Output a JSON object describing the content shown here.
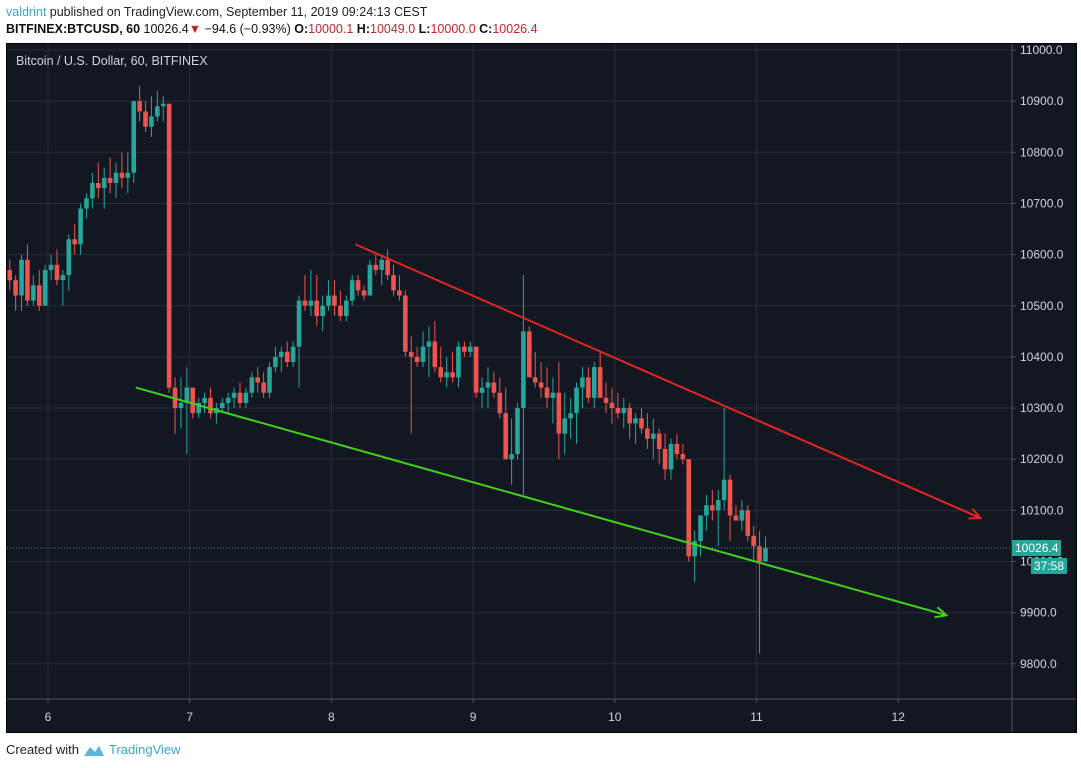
{
  "header": {
    "user": "valdrint",
    "published_text": " published on TradingView.com, September 11, 2019 09:24:13 CEST",
    "symbol": "BITFINEX:BTCUSD, 60",
    "last": "10026.4",
    "down_arrow": "▼",
    "change": "−94.6 (−0.93%)",
    "o_label": "O:",
    "o": "10000.1",
    "h_label": "H:",
    "h": "10049.0",
    "l_label": "L:",
    "l": "10000.0",
    "c_label": "C:",
    "c": "10026.4"
  },
  "chart_title": "Bitcoin / U.S. Dollar, 60, BITFINEX",
  "price_label": "10026.4",
  "countdown_label": "37:58",
  "footer": {
    "created_with": "Created with",
    "brand": "TradingView"
  },
  "colors": {
    "bg": "#131722",
    "grid": "#2a2e39",
    "up": "#26a69a",
    "down": "#ef5350",
    "text": "#d1d4dc",
    "resistance": "#e3261f",
    "support": "#3fd21a"
  },
  "chart_data": {
    "type": "candlestick",
    "title": "Bitcoin / U.S. Dollar, 60, BITFINEX",
    "xlabel": "",
    "ylabel": "",
    "x_ticks": [
      "6",
      "7",
      "8",
      "9",
      "10",
      "11",
      "12"
    ],
    "y_ticks": [
      "11000.0",
      "10900.0",
      "10800.0",
      "10700.0",
      "10600.0",
      "10500.0",
      "10400.0",
      "10300.0",
      "10200.0",
      "10100.0",
      "10000.0",
      "9900.0",
      "9800.0"
    ],
    "ylim": [
      9720,
      11010
    ],
    "grid": true,
    "last_price": 10026.4,
    "trendlines": [
      {
        "name": "resistance",
        "color": "#e3261f",
        "from": {
          "day": 8.17,
          "price": 10620
        },
        "to": {
          "day": 12.58,
          "price": 10085
        },
        "arrow": true
      },
      {
        "name": "support",
        "color": "#3fd21a",
        "from": {
          "day": 6.62,
          "price": 10340
        },
        "to": {
          "day": 12.34,
          "price": 9895
        },
        "arrow": true
      }
    ],
    "candles_start_day": 5.73,
    "candle_hours": 1,
    "ohlc": [
      [
        10570,
        10590,
        10530,
        10550
      ],
      [
        10550,
        10560,
        10490,
        10520
      ],
      [
        10520,
        10600,
        10490,
        10590
      ],
      [
        10590,
        10620,
        10500,
        10510
      ],
      [
        10510,
        10560,
        10500,
        10540
      ],
      [
        10540,
        10570,
        10490,
        10500
      ],
      [
        10500,
        10580,
        10500,
        10570
      ],
      [
        10570,
        10600,
        10550,
        10580
      ],
      [
        10580,
        10610,
        10540,
        10550
      ],
      [
        10550,
        10570,
        10500,
        10560
      ],
      [
        10560,
        10640,
        10530,
        10630
      ],
      [
        10630,
        10660,
        10600,
        10620
      ],
      [
        10620,
        10700,
        10600,
        10690
      ],
      [
        10690,
        10720,
        10670,
        10710
      ],
      [
        10710,
        10760,
        10690,
        10740
      ],
      [
        10740,
        10780,
        10710,
        10730
      ],
      [
        10730,
        10770,
        10690,
        10750
      ],
      [
        10750,
        10790,
        10720,
        10740
      ],
      [
        10740,
        10780,
        10710,
        10760
      ],
      [
        10760,
        10800,
        10730,
        10750
      ],
      [
        10750,
        10800,
        10720,
        10760
      ],
      [
        10760,
        10900,
        10740,
        10900
      ],
      [
        10900,
        10930,
        10860,
        10880
      ],
      [
        10880,
        10900,
        10840,
        10850
      ],
      [
        10850,
        10910,
        10830,
        10870
      ],
      [
        10870,
        10920,
        10860,
        10890
      ],
      [
        10890,
        10910,
        10860,
        10895
      ],
      [
        10895,
        10895,
        10330,
        10340
      ],
      [
        10340,
        10360,
        10250,
        10300
      ],
      [
        10300,
        10360,
        10260,
        10310
      ],
      [
        10310,
        10380,
        10210,
        10340
      ],
      [
        10340,
        10340,
        10280,
        10290
      ],
      [
        10290,
        10320,
        10280,
        10310
      ],
      [
        10310,
        10330,
        10290,
        10320
      ],
      [
        10320,
        10340,
        10280,
        10290
      ],
      [
        10290,
        10310,
        10270,
        10300
      ],
      [
        10300,
        10320,
        10290,
        10310
      ],
      [
        10310,
        10330,
        10290,
        10320
      ],
      [
        10320,
        10340,
        10300,
        10330
      ],
      [
        10330,
        10350,
        10300,
        10310
      ],
      [
        10310,
        10340,
        10300,
        10330
      ],
      [
        10330,
        10370,
        10320,
        10360
      ],
      [
        10360,
        10380,
        10330,
        10350
      ],
      [
        10350,
        10370,
        10320,
        10330
      ],
      [
        10330,
        10390,
        10320,
        10380
      ],
      [
        10380,
        10420,
        10370,
        10400
      ],
      [
        10400,
        10420,
        10370,
        10410
      ],
      [
        10410,
        10430,
        10380,
        10390
      ],
      [
        10390,
        10430,
        10380,
        10420
      ],
      [
        10420,
        10520,
        10340,
        10510
      ],
      [
        10510,
        10560,
        10490,
        10500
      ],
      [
        10500,
        10570,
        10480,
        10510
      ],
      [
        10510,
        10560,
        10460,
        10480
      ],
      [
        10480,
        10520,
        10450,
        10500
      ],
      [
        10500,
        10550,
        10490,
        10520
      ],
      [
        10520,
        10550,
        10480,
        10500
      ],
      [
        10500,
        10530,
        10470,
        10480
      ],
      [
        10480,
        10520,
        10470,
        10510
      ],
      [
        10510,
        10560,
        10500,
        10550
      ],
      [
        10550,
        10560,
        10520,
        10530
      ],
      [
        10530,
        10540,
        10510,
        10520
      ],
      [
        10520,
        10590,
        10520,
        10580
      ],
      [
        10580,
        10600,
        10560,
        10570
      ],
      [
        10570,
        10600,
        10540,
        10590
      ],
      [
        10590,
        10610,
        10550,
        10560
      ],
      [
        10560,
        10580,
        10520,
        10530
      ],
      [
        10530,
        10560,
        10510,
        10520
      ],
      [
        10520,
        10530,
        10400,
        10410
      ],
      [
        10410,
        10440,
        10250,
        10400
      ],
      [
        10400,
        10420,
        10380,
        10390
      ],
      [
        10390,
        10450,
        10380,
        10420
      ],
      [
        10420,
        10460,
        10360,
        10430
      ],
      [
        10430,
        10470,
        10370,
        10380
      ],
      [
        10380,
        10420,
        10350,
        10360
      ],
      [
        10360,
        10400,
        10340,
        10370
      ],
      [
        10370,
        10410,
        10350,
        10360
      ],
      [
        10360,
        10430,
        10340,
        10420
      ],
      [
        10420,
        10430,
        10400,
        10410
      ],
      [
        10410,
        10430,
        10400,
        10420
      ],
      [
        10420,
        10420,
        10320,
        10330
      ],
      [
        10330,
        10360,
        10300,
        10340
      ],
      [
        10340,
        10380,
        10300,
        10350
      ],
      [
        10350,
        10370,
        10320,
        10330
      ],
      [
        10330,
        10360,
        10280,
        10290
      ],
      [
        10290,
        10340,
        10200,
        10200
      ],
      [
        10200,
        10280,
        10150,
        10210
      ],
      [
        10210,
        10310,
        10200,
        10300
      ],
      [
        10300,
        10560,
        10130,
        10450
      ],
      [
        10450,
        10460,
        10380,
        10360
      ],
      [
        10360,
        10410,
        10340,
        10350
      ],
      [
        10350,
        10390,
        10320,
        10340
      ],
      [
        10340,
        10380,
        10300,
        10320
      ],
      [
        10320,
        10360,
        10270,
        10330
      ],
      [
        10330,
        10390,
        10200,
        10250
      ],
      [
        10250,
        10330,
        10210,
        10280
      ],
      [
        10280,
        10320,
        10240,
        10290
      ],
      [
        10290,
        10350,
        10230,
        10340
      ],
      [
        10340,
        10380,
        10300,
        10360
      ],
      [
        10360,
        10380,
        10310,
        10320
      ],
      [
        10320,
        10390,
        10300,
        10380
      ],
      [
        10380,
        10410,
        10340,
        10320
      ],
      [
        10320,
        10350,
        10290,
        10310
      ],
      [
        10310,
        10340,
        10270,
        10300
      ],
      [
        10300,
        10330,
        10280,
        10290
      ],
      [
        10290,
        10320,
        10260,
        10300
      ],
      [
        10300,
        10310,
        10240,
        10270
      ],
      [
        10270,
        10290,
        10230,
        10280
      ],
      [
        10280,
        10300,
        10250,
        10260
      ],
      [
        10260,
        10290,
        10220,
        10240
      ],
      [
        10240,
        10280,
        10200,
        10250
      ],
      [
        10250,
        10260,
        10190,
        10220
      ],
      [
        10220,
        10250,
        10160,
        10180
      ],
      [
        10180,
        10240,
        10160,
        10230
      ],
      [
        10230,
        10250,
        10200,
        10210
      ],
      [
        10210,
        10230,
        10190,
        10200
      ],
      [
        10200,
        10200,
        10000,
        10010
      ],
      [
        10010,
        10060,
        9960,
        10040
      ],
      [
        10040,
        10080,
        10010,
        10090
      ],
      [
        10090,
        10130,
        10060,
        10110
      ],
      [
        10110,
        10140,
        10080,
        10100
      ],
      [
        10100,
        10140,
        10030,
        10120
      ],
      [
        10120,
        10300,
        10100,
        10160
      ],
      [
        10160,
        10170,
        10040,
        10090
      ],
      [
        10090,
        10110,
        10080,
        10080
      ],
      [
        10080,
        10120,
        10060,
        10100
      ],
      [
        10100,
        10110,
        10040,
        10050
      ],
      [
        10050,
        10070,
        10000,
        10030
      ],
      [
        10030,
        10060,
        9820,
        10000
      ],
      [
        10000,
        10049,
        10000,
        10026
      ]
    ]
  }
}
